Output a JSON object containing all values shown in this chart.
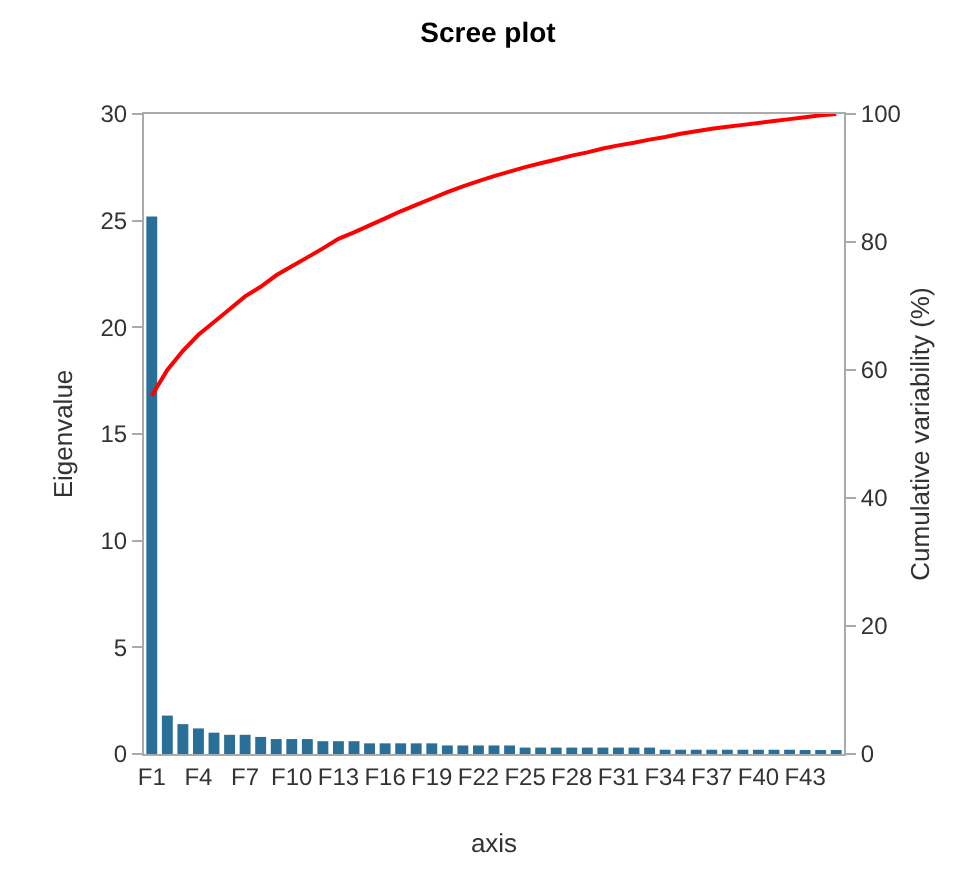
{
  "chart_data": {
    "type": "bar",
    "title": "Scree plot",
    "xlabel": "axis",
    "ylabel": "Eigenvalue",
    "y2label": "Cumulative variability (%)",
    "categories": [
      "F1",
      null,
      null,
      "F4",
      null,
      null,
      "F7",
      null,
      null,
      "F10",
      null,
      null,
      "F13",
      null,
      null,
      "F16",
      null,
      null,
      "F19",
      null,
      null,
      "F22",
      null,
      null,
      "F25",
      null,
      null,
      "F28",
      null,
      null,
      "F31",
      null,
      null,
      "F34",
      null,
      null,
      "F37",
      null,
      null,
      "F40",
      null,
      null,
      "F43",
      null,
      null
    ],
    "series": [
      {
        "color": "#2a6f97",
        "values": [
          25.2,
          1.8,
          1.4,
          1.2,
          1.0,
          0.9,
          0.9,
          0.8,
          0.7,
          0.7,
          0.7,
          0.6,
          0.6,
          0.6,
          0.5,
          0.5,
          0.5,
          0.5,
          0.5,
          0.4,
          0.4,
          0.4,
          0.4,
          0.4,
          0.3,
          0.3,
          0.3,
          0.3,
          0.3,
          0.3,
          0.3,
          0.3,
          0.3,
          0.2,
          0.2,
          0.2,
          0.2,
          0.2,
          0.2,
          0.2,
          0.2,
          0.2,
          0.1,
          0.1,
          0.1
        ]
      },
      {
        "type": "line",
        "axis": "y2",
        "color": "#ff0000",
        "values": [
          56,
          60,
          63,
          65.5,
          67.5,
          69.5,
          71.5,
          73,
          74.8,
          76.2,
          77.6,
          79,
          80.5,
          81.5,
          82.6,
          83.7,
          84.8,
          85.8,
          86.8,
          87.8,
          88.7,
          89.5,
          90.3,
          91,
          91.7,
          92.3,
          92.9,
          93.5,
          94,
          94.6,
          95.1,
          95.5,
          96,
          96.4,
          96.9,
          97.3,
          97.7,
          98,
          98.3,
          98.6,
          98.9,
          99.2,
          99.5,
          99.8,
          100
        ]
      }
    ],
    "ylim": [
      0,
      30
    ],
    "yticks": [
      0,
      5,
      10,
      15,
      20,
      25,
      30
    ],
    "y2lim": [
      0,
      100
    ],
    "y2ticks": [
      0,
      20,
      40,
      60,
      80,
      100
    ],
    "grid": false,
    "legend": false,
    "marker": "none",
    "line_style": "solid"
  }
}
